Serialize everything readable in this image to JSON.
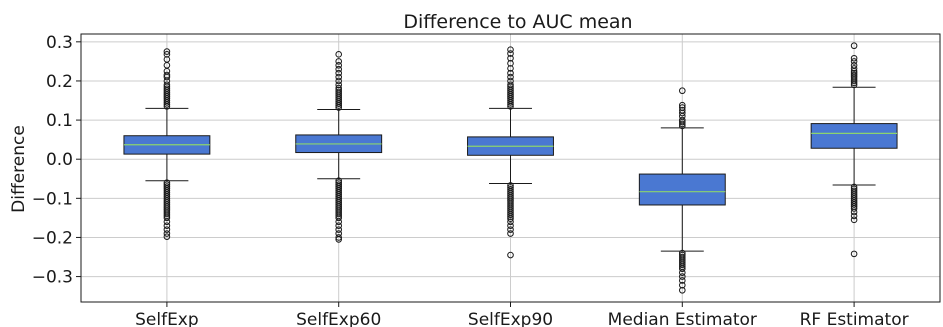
{
  "chart_data": {
    "type": "box",
    "title": "Difference to AUC mean",
    "xlabel": "",
    "ylabel": "Difference",
    "ylim": [
      -0.365,
      0.32
    ],
    "yticks": [
      0.3,
      0.2,
      0.1,
      0.0,
      -0.1,
      -0.2,
      -0.3
    ],
    "ytick_labels": [
      "0.3",
      "0.2",
      "0.1",
      "0.0",
      "−0.1",
      "−0.2",
      "−0.3"
    ],
    "grid": true,
    "colors": {
      "box_fill": "#4a78d2",
      "median": "#8cd46e",
      "edge": "#1a1a1a",
      "grid": "#cccccc"
    },
    "categories": [
      "SelfExp",
      "SelfExp60",
      "SelfExp90",
      "Median Estimator",
      "RF Estimator"
    ],
    "boxes": [
      {
        "name": "SelfExp",
        "whislo": -0.055,
        "q1": 0.013,
        "med": 0.037,
        "q3": 0.06,
        "whishi": 0.13,
        "fliers": [
          0.135,
          0.14,
          0.145,
          0.15,
          0.155,
          0.16,
          0.165,
          0.17,
          0.175,
          0.18,
          0.185,
          0.19,
          0.2,
          0.21,
          0.215,
          0.225,
          0.24,
          0.255,
          0.268,
          0.275,
          -0.06,
          -0.065,
          -0.07,
          -0.075,
          -0.08,
          -0.085,
          -0.09,
          -0.095,
          -0.1,
          -0.105,
          -0.11,
          -0.115,
          -0.12,
          -0.125,
          -0.13,
          -0.135,
          -0.14,
          -0.145,
          -0.15,
          -0.16,
          -0.17,
          -0.18,
          -0.19,
          -0.198
        ]
      },
      {
        "name": "SelfExp60",
        "whislo": -0.05,
        "q1": 0.017,
        "med": 0.039,
        "q3": 0.062,
        "whishi": 0.127,
        "fliers": [
          0.132,
          0.137,
          0.142,
          0.147,
          0.152,
          0.157,
          0.162,
          0.167,
          0.172,
          0.177,
          0.182,
          0.19,
          0.2,
          0.21,
          0.22,
          0.23,
          0.24,
          0.25,
          0.268,
          -0.055,
          -0.06,
          -0.065,
          -0.07,
          -0.075,
          -0.08,
          -0.085,
          -0.09,
          -0.095,
          -0.1,
          -0.105,
          -0.11,
          -0.115,
          -0.12,
          -0.125,
          -0.13,
          -0.135,
          -0.14,
          -0.145,
          -0.15,
          -0.16,
          -0.17,
          -0.18,
          -0.19,
          -0.2,
          -0.205
        ]
      },
      {
        "name": "SelfExp90",
        "whislo": -0.062,
        "q1": 0.01,
        "med": 0.033,
        "q3": 0.057,
        "whishi": 0.13,
        "fliers": [
          0.135,
          0.14,
          0.145,
          0.15,
          0.155,
          0.16,
          0.165,
          0.17,
          0.175,
          0.18,
          0.185,
          0.19,
          0.2,
          0.21,
          0.22,
          0.232,
          0.245,
          0.258,
          0.27,
          0.28,
          -0.067,
          -0.072,
          -0.077,
          -0.082,
          -0.087,
          -0.092,
          -0.097,
          -0.102,
          -0.107,
          -0.112,
          -0.117,
          -0.122,
          -0.127,
          -0.132,
          -0.137,
          -0.142,
          -0.147,
          -0.152,
          -0.16,
          -0.17,
          -0.18,
          -0.19,
          -0.245
        ]
      },
      {
        "name": "Median Estimator",
        "whislo": -0.235,
        "q1": -0.117,
        "med": -0.083,
        "q3": -0.038,
        "whishi": 0.08,
        "fliers": [
          0.085,
          0.09,
          0.095,
          0.1,
          0.11,
          0.118,
          0.125,
          0.132,
          0.138,
          0.175,
          -0.24,
          -0.245,
          -0.25,
          -0.255,
          -0.26,
          -0.265,
          -0.27,
          -0.275,
          -0.28,
          -0.29,
          -0.3,
          -0.31,
          -0.322,
          -0.335
        ]
      },
      {
        "name": "RF Estimator",
        "whislo": -0.066,
        "q1": 0.028,
        "med": 0.066,
        "q3": 0.091,
        "whishi": 0.184,
        "fliers": [
          0.19,
          0.195,
          0.2,
          0.205,
          0.21,
          0.215,
          0.22,
          0.225,
          0.232,
          0.24,
          0.25,
          0.258,
          0.29,
          -0.071,
          -0.076,
          -0.081,
          -0.086,
          -0.091,
          -0.096,
          -0.101,
          -0.106,
          -0.111,
          -0.116,
          -0.121,
          -0.126,
          -0.135,
          -0.145,
          -0.155,
          -0.242
        ]
      }
    ]
  }
}
